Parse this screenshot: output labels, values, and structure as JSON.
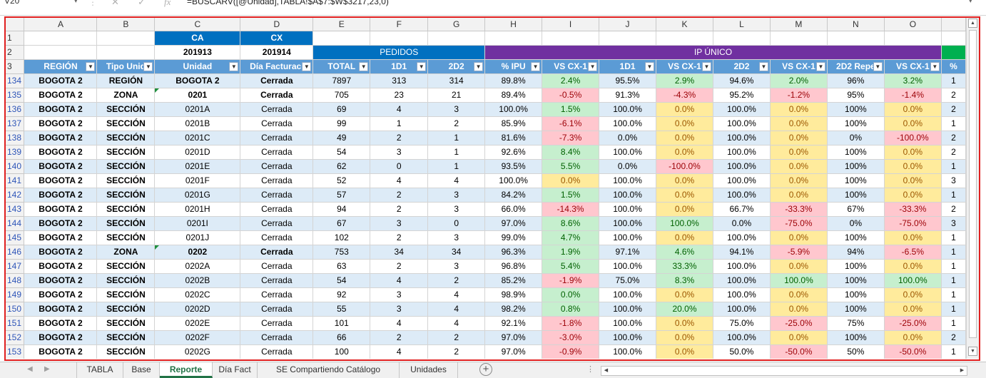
{
  "formula_bar": {
    "cell_ref": "V20",
    "formula": "=BUSCARV([@Unidad],TABLA!$A$7:$W$3217,23,0)",
    "cancel_icon": "x-icon",
    "enter_icon": "check-icon",
    "function_icon": "fx-icon"
  },
  "columns": [
    "A",
    "B",
    "C",
    "D",
    "E",
    "F",
    "G",
    "H",
    "I",
    "J",
    "K",
    "L",
    "M",
    "N",
    "O",
    ""
  ],
  "row1": {
    "num": "1",
    "ca": "CA",
    "cx": "CX"
  },
  "row2": {
    "num": "2",
    "ca_val": "201913",
    "cx_val": "201914",
    "pedidos": "PEDIDOS",
    "ipu": "IP ÚNICO"
  },
  "row3": {
    "num": "3",
    "headers": [
      "REGIÓN",
      "Tipo Unid",
      "Unidad",
      "Día Facturaci",
      "TOTAL",
      "1D1",
      "2D2",
      "% IPU",
      "VS CX-1",
      "1D1",
      "VS CX-1",
      "2D2",
      "VS CX-1",
      "2D2 Repe",
      "VS CX-1",
      "%"
    ]
  },
  "rows": [
    {
      "num": "134",
      "vals": [
        "BOGOTA 2",
        "REGIÓN",
        "BOGOTA 2",
        "Cerrada",
        "7897",
        "313",
        "314",
        "89.8%",
        "2.4%",
        "95.5%",
        "2.9%",
        "94.6%",
        "2.0%",
        "96%",
        "3.2%",
        "1"
      ],
      "cf": [
        "g",
        "g",
        "g",
        "g"
      ]
    },
    {
      "num": "135",
      "vals": [
        "BOGOTA 2",
        "ZONA",
        "0201",
        "Cerrada",
        "705",
        "23",
        "21",
        "89.4%",
        "-0.5%",
        "91.3%",
        "-4.3%",
        "95.2%",
        "-1.2%",
        "95%",
        "-1.4%",
        "2"
      ],
      "cf": [
        "r",
        "r",
        "r",
        "r"
      ]
    },
    {
      "num": "136",
      "vals": [
        "BOGOTA 2",
        "SECCIÓN",
        "0201A",
        "Cerrada",
        "69",
        "4",
        "3",
        "100.0%",
        "1.5%",
        "100.0%",
        "0.0%",
        "100.0%",
        "0.0%",
        "100%",
        "0.0%",
        "2"
      ],
      "cf": [
        "g",
        "y",
        "y",
        "y"
      ]
    },
    {
      "num": "137",
      "vals": [
        "BOGOTA 2",
        "SECCIÓN",
        "0201B",
        "Cerrada",
        "99",
        "1",
        "2",
        "85.9%",
        "-6.1%",
        "100.0%",
        "0.0%",
        "100.0%",
        "0.0%",
        "100%",
        "0.0%",
        "1"
      ],
      "cf": [
        "r",
        "y",
        "y",
        "y"
      ]
    },
    {
      "num": "138",
      "vals": [
        "BOGOTA 2",
        "SECCIÓN",
        "0201C",
        "Cerrada",
        "49",
        "2",
        "1",
        "81.6%",
        "-7.3%",
        "0.0%",
        "0.0%",
        "100.0%",
        "0.0%",
        "0%",
        "-100.0%",
        "2"
      ],
      "cf": [
        "r",
        "y",
        "y",
        "r"
      ]
    },
    {
      "num": "139",
      "vals": [
        "BOGOTA 2",
        "SECCIÓN",
        "0201D",
        "Cerrada",
        "54",
        "3",
        "1",
        "92.6%",
        "8.4%",
        "100.0%",
        "0.0%",
        "100.0%",
        "0.0%",
        "100%",
        "0.0%",
        "2"
      ],
      "cf": [
        "g",
        "y",
        "y",
        "y"
      ]
    },
    {
      "num": "140",
      "vals": [
        "BOGOTA 2",
        "SECCIÓN",
        "0201E",
        "Cerrada",
        "62",
        "0",
        "1",
        "93.5%",
        "5.5%",
        "0.0%",
        "-100.0%",
        "100.0%",
        "0.0%",
        "100%",
        "0.0%",
        "1"
      ],
      "cf": [
        "g",
        "r",
        "y",
        "y"
      ]
    },
    {
      "num": "141",
      "vals": [
        "BOGOTA 2",
        "SECCIÓN",
        "0201F",
        "Cerrada",
        "52",
        "4",
        "4",
        "100.0%",
        "0.0%",
        "100.0%",
        "0.0%",
        "100.0%",
        "0.0%",
        "100%",
        "0.0%",
        "3"
      ],
      "cf": [
        "y",
        "y",
        "y",
        "y"
      ]
    },
    {
      "num": "142",
      "vals": [
        "BOGOTA 2",
        "SECCIÓN",
        "0201G",
        "Cerrada",
        "57",
        "2",
        "3",
        "84.2%",
        "1.5%",
        "100.0%",
        "0.0%",
        "100.0%",
        "0.0%",
        "100%",
        "0.0%",
        "1"
      ],
      "cf": [
        "g",
        "y",
        "y",
        "y"
      ]
    },
    {
      "num": "143",
      "vals": [
        "BOGOTA 2",
        "SECCIÓN",
        "0201H",
        "Cerrada",
        "94",
        "2",
        "3",
        "66.0%",
        "-14.3%",
        "100.0%",
        "0.0%",
        "66.7%",
        "-33.3%",
        "67%",
        "-33.3%",
        "2"
      ],
      "cf": [
        "r",
        "y",
        "r",
        "r"
      ]
    },
    {
      "num": "144",
      "vals": [
        "BOGOTA 2",
        "SECCIÓN",
        "0201I",
        "Cerrada",
        "67",
        "3",
        "0",
        "97.0%",
        "8.6%",
        "100.0%",
        "100.0%",
        "0.0%",
        "-75.0%",
        "0%",
        "-75.0%",
        "3"
      ],
      "cf": [
        "g",
        "g",
        "r",
        "r"
      ]
    },
    {
      "num": "145",
      "vals": [
        "BOGOTA 2",
        "SECCIÓN",
        "0201J",
        "Cerrada",
        "102",
        "2",
        "3",
        "99.0%",
        "4.7%",
        "100.0%",
        "0.0%",
        "100.0%",
        "0.0%",
        "100%",
        "0.0%",
        "1"
      ],
      "cf": [
        "g",
        "y",
        "y",
        "y"
      ]
    },
    {
      "num": "146",
      "vals": [
        "BOGOTA 2",
        "ZONA",
        "0202",
        "Cerrada",
        "753",
        "34",
        "34",
        "96.3%",
        "1.9%",
        "97.1%",
        "4.6%",
        "94.1%",
        "-5.9%",
        "94%",
        "-6.5%",
        "1"
      ],
      "cf": [
        "g",
        "g",
        "r",
        "r"
      ]
    },
    {
      "num": "147",
      "vals": [
        "BOGOTA 2",
        "SECCIÓN",
        "0202A",
        "Cerrada",
        "63",
        "2",
        "3",
        "96.8%",
        "5.4%",
        "100.0%",
        "33.3%",
        "100.0%",
        "0.0%",
        "100%",
        "0.0%",
        "1"
      ],
      "cf": [
        "g",
        "g",
        "y",
        "y"
      ]
    },
    {
      "num": "148",
      "vals": [
        "BOGOTA 2",
        "SECCIÓN",
        "0202B",
        "Cerrada",
        "54",
        "4",
        "2",
        "85.2%",
        "-1.9%",
        "75.0%",
        "8.3%",
        "100.0%",
        "100.0%",
        "100%",
        "100.0%",
        "1"
      ],
      "cf": [
        "r",
        "g",
        "g",
        "g"
      ]
    },
    {
      "num": "149",
      "vals": [
        "BOGOTA 2",
        "SECCIÓN",
        "0202C",
        "Cerrada",
        "92",
        "3",
        "4",
        "98.9%",
        "0.0%",
        "100.0%",
        "0.0%",
        "100.0%",
        "0.0%",
        "100%",
        "0.0%",
        "1"
      ],
      "cf": [
        "g",
        "y",
        "y",
        "y"
      ]
    },
    {
      "num": "150",
      "vals": [
        "BOGOTA 2",
        "SECCIÓN",
        "0202D",
        "Cerrada",
        "55",
        "3",
        "4",
        "98.2%",
        "0.8%",
        "100.0%",
        "20.0%",
        "100.0%",
        "0.0%",
        "100%",
        "0.0%",
        "1"
      ],
      "cf": [
        "g",
        "g",
        "y",
        "y"
      ]
    },
    {
      "num": "151",
      "vals": [
        "BOGOTA 2",
        "SECCIÓN",
        "0202E",
        "Cerrada",
        "101",
        "4",
        "4",
        "92.1%",
        "-1.8%",
        "100.0%",
        "0.0%",
        "75.0%",
        "-25.0%",
        "75%",
        "-25.0%",
        "1"
      ],
      "cf": [
        "r",
        "y",
        "r",
        "r"
      ]
    },
    {
      "num": "152",
      "vals": [
        "BOGOTA 2",
        "SECCIÓN",
        "0202F",
        "Cerrada",
        "66",
        "2",
        "2",
        "97.0%",
        "-3.0%",
        "100.0%",
        "0.0%",
        "100.0%",
        "0.0%",
        "100%",
        "0.0%",
        "2"
      ],
      "cf": [
        "r",
        "y",
        "y",
        "y"
      ]
    },
    {
      "num": "153",
      "vals": [
        "BOGOTA 2",
        "SECCIÓN",
        "0202G",
        "Cerrada",
        "100",
        "4",
        "2",
        "97.0%",
        "-0.9%",
        "100.0%",
        "0.0%",
        "50.0%",
        "-50.0%",
        "50%",
        "-50.0%",
        "1"
      ],
      "cf": [
        "r",
        "y",
        "r",
        "r"
      ]
    }
  ],
  "sheet_tabs": [
    {
      "label": "TABLA",
      "active": false
    },
    {
      "label": "Base",
      "active": false
    },
    {
      "label": "Reporte",
      "active": true
    },
    {
      "label": "Día Fact",
      "active": false
    },
    {
      "label": "SE Compartiendo Catálogo",
      "active": false
    },
    {
      "label": "Unidades",
      "active": false
    }
  ],
  "colors": {
    "accent_blue": "#0070c0",
    "header_blue": "#5b9bd5",
    "band_purple": "#7030a0",
    "band_green": "#00b050",
    "row_band": "#ddebf7",
    "active_tab": "#217346",
    "frame_red": "#e02020"
  },
  "icons": {
    "filter": "filter-dropdown-icon",
    "scroll_up": "scroll-up-arrow-icon",
    "scroll_down": "scroll-down-arrow-icon",
    "scroll_left": "scroll-left-arrow-icon",
    "scroll_right": "scroll-right-arrow-icon",
    "add_sheet": "add-sheet-icon"
  }
}
